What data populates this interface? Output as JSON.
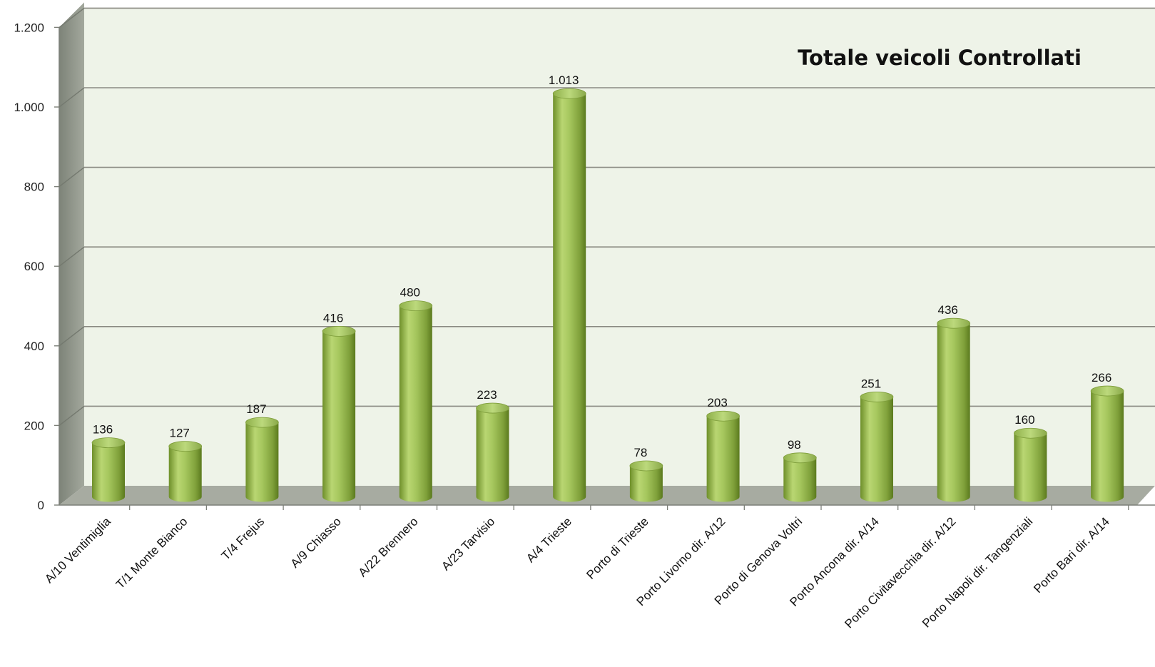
{
  "chart_data": {
    "type": "bar",
    "title": "Totale veicoli Controllati",
    "categories": [
      "A/10 Ventimiglia",
      "T/1 Monte Bianco",
      "T/4  Frejus",
      "A/9 Chiasso",
      "A/22 Brennero",
      "A/23 Tarvisio",
      "A/4 Trieste",
      "Porto di Trieste",
      "Porto Livorno dir. A/12",
      "Porto di Genova Voltri",
      "Porto Ancona dir. A/14",
      "Porto Civitavecchia dir. A/12",
      "Porto Napoli dir. Tangenziali",
      "Porto Bari dir. A/14"
    ],
    "values": [
      136,
      127,
      187,
      416,
      480,
      223,
      1013,
      78,
      203,
      98,
      251,
      436,
      160,
      266
    ],
    "data_labels": [
      "136",
      "127",
      "187",
      "416",
      "480",
      "223",
      "1.013",
      "78",
      "203",
      "98",
      "251",
      "436",
      "160",
      "266"
    ],
    "ylim": [
      0,
      1200
    ],
    "yticks": [
      0,
      200,
      400,
      600,
      800,
      1000,
      1200
    ],
    "ytick_labels": [
      "0",
      "200",
      "400",
      "600",
      "800",
      "1.000",
      "1.200"
    ],
    "xlabel": "",
    "ylabel": "",
    "grid": true,
    "legend": "none",
    "colors": {
      "bar": "#9bbb59",
      "bar_dark": "#5d7a1f",
      "bar_light": "#c4dc86",
      "wall": "#eef3e8",
      "side_wall": "#8e9488",
      "floor": "#a7aba1",
      "gridline": "#8a8a82"
    }
  }
}
